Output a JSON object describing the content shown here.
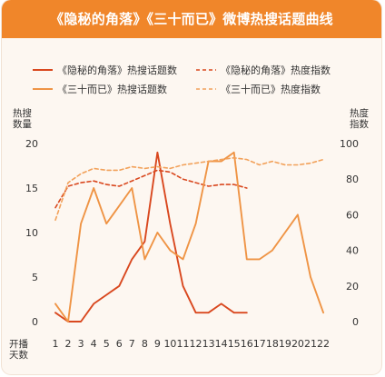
{
  "chart_data": {
    "type": "line",
    "title": "《隐秘的角落》《三十而已》微博热搜话题曲线",
    "ylabel_left": "热搜\n数量",
    "ylabel_right": "热度\n指数",
    "xlabel": "开播\n天数",
    "x": [
      1,
      2,
      3,
      4,
      5,
      6,
      7,
      8,
      9,
      10,
      11,
      12,
      13,
      14,
      15,
      16,
      17,
      18,
      19,
      20,
      21,
      22
    ],
    "ylim_left": [
      0,
      20
    ],
    "yticks_left": [
      0,
      5,
      10,
      15,
      20
    ],
    "ylim_right": [
      0,
      100
    ],
    "yticks_right": [
      0,
      20,
      40,
      60,
      80,
      100
    ],
    "legend_position": "top",
    "series": [
      {
        "name": "《隐秘的角落》热搜话题数",
        "axis": "left",
        "style": "solid",
        "color": "#d9481f",
        "values": [
          1,
          0,
          0,
          2,
          3,
          4,
          7,
          9,
          19,
          11,
          4,
          1,
          1,
          2,
          1,
          1,
          null,
          null,
          null,
          null,
          null,
          null
        ]
      },
      {
        "name": "《隐秘的角落》热度指数",
        "axis": "right",
        "style": "dashed",
        "color": "#d9481f",
        "values": [
          64,
          76,
          78,
          79,
          77,
          76,
          79,
          82,
          85,
          84,
          80,
          78,
          76,
          77,
          77,
          75,
          null,
          null,
          null,
          null,
          null,
          null
        ]
      },
      {
        "name": "《三十而已》热搜话题数",
        "axis": "left",
        "style": "solid",
        "color": "#ef9445",
        "values": [
          2,
          0,
          11,
          15,
          11,
          13,
          15,
          7,
          10,
          8,
          7,
          11,
          18,
          18,
          19,
          7,
          7,
          8,
          10,
          12,
          5,
          1
        ]
      },
      {
        "name": "《三十而已》热度指数",
        "axis": "right",
        "style": "dashed",
        "color": "#f2a15a",
        "values": [
          57,
          78,
          83,
          86,
          85,
          85,
          87,
          86,
          87,
          86,
          88,
          89,
          90,
          91,
          92,
          91,
          88,
          90,
          88,
          88,
          89,
          91
        ]
      }
    ]
  }
}
